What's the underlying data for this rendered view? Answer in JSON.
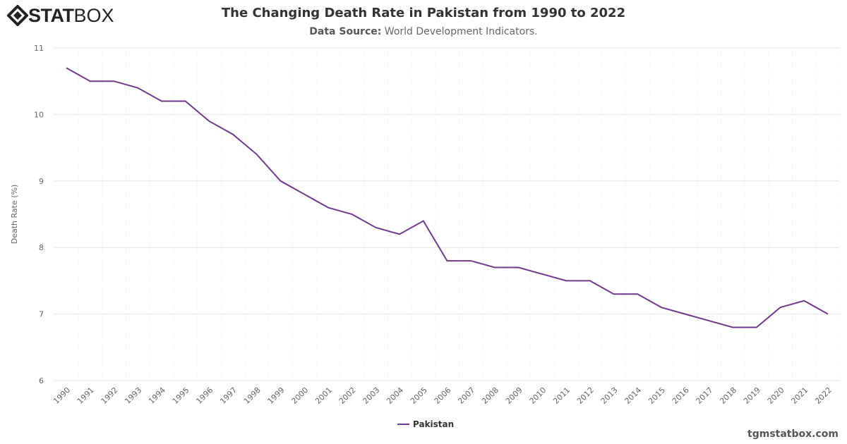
{
  "logo": {
    "brand_bold": "STAT",
    "brand_light": "BOX"
  },
  "title": "The Changing Death Rate in Pakistan from 1990 to 2022",
  "subtitle_label": "Data Source:",
  "subtitle_value": "World Development Indicators.",
  "footer": "tgmstatbox.com",
  "chart_data": {
    "type": "line",
    "title": "The Changing Death Rate in Pakistan from 1990 to 2022",
    "ylabel": "Death Rate (%)",
    "xlabel": "",
    "ylim": [
      6,
      11
    ],
    "yticks": [
      6,
      7,
      8,
      9,
      10,
      11
    ],
    "grid": true,
    "legend_placement": "bottom",
    "x": [
      1990,
      1991,
      1992,
      1993,
      1994,
      1995,
      1996,
      1997,
      1998,
      1999,
      2000,
      2001,
      2002,
      2003,
      2004,
      2005,
      2006,
      2007,
      2008,
      2009,
      2010,
      2011,
      2012,
      2013,
      2014,
      2015,
      2016,
      2017,
      2018,
      2019,
      2020,
      2021,
      2022
    ],
    "series": [
      {
        "name": "Pakistan",
        "color": "#6f3a8e",
        "values": [
          10.7,
          10.5,
          10.5,
          10.4,
          10.2,
          10.2,
          9.9,
          9.7,
          9.4,
          9.0,
          8.8,
          8.6,
          8.5,
          8.3,
          8.2,
          8.4,
          7.8,
          7.8,
          7.7,
          7.7,
          7.6,
          7.5,
          7.5,
          7.3,
          7.3,
          7.1,
          7.0,
          6.9,
          6.8,
          6.8,
          7.1,
          7.2,
          7.0
        ]
      }
    ]
  }
}
